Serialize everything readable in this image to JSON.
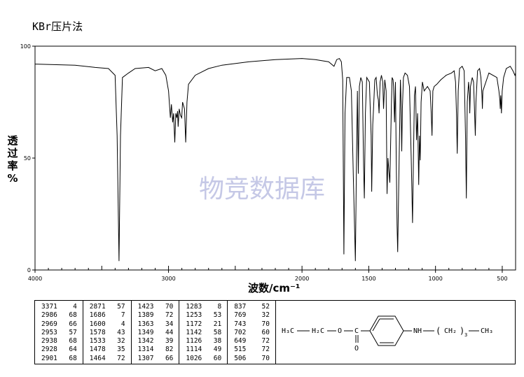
{
  "header": {
    "method": "KBr压片法"
  },
  "watermark": "物竞数据库",
  "chart_data": {
    "type": "line",
    "xlabel": "波数/cm⁻¹",
    "ylabel": [
      "透",
      "过",
      "率",
      "%"
    ],
    "xlim": [
      4000,
      400
    ],
    "ylim": [
      0,
      100
    ],
    "x_ticks": [
      4000,
      3000,
      2000,
      1500,
      1000,
      500
    ],
    "y_ticks": [
      0,
      50,
      100
    ],
    "series": [
      {
        "values": [
          [
            4000,
            92
          ],
          [
            3700,
            91.5
          ],
          [
            3550,
            90.5
          ],
          [
            3450,
            90
          ],
          [
            3400,
            87
          ],
          [
            3385,
            60
          ],
          [
            3371,
            4
          ],
          [
            3360,
            60
          ],
          [
            3345,
            86
          ],
          [
            3300,
            88
          ],
          [
            3250,
            90
          ],
          [
            3150,
            90.5
          ],
          [
            3100,
            89
          ],
          [
            3050,
            90
          ],
          [
            3020,
            87
          ],
          [
            3000,
            80
          ],
          [
            2986,
            68
          ],
          [
            2978,
            74
          ],
          [
            2969,
            66
          ],
          [
            2962,
            70
          ],
          [
            2953,
            57
          ],
          [
            2945,
            70
          ],
          [
            2938,
            68
          ],
          [
            2932,
            71
          ],
          [
            2928,
            64
          ],
          [
            2920,
            72
          ],
          [
            2910,
            69
          ],
          [
            2901,
            68
          ],
          [
            2895,
            75
          ],
          [
            2880,
            72
          ],
          [
            2871,
            57
          ],
          [
            2862,
            75
          ],
          [
            2850,
            83
          ],
          [
            2800,
            87
          ],
          [
            2700,
            90
          ],
          [
            2600,
            91.5
          ],
          [
            2400,
            93
          ],
          [
            2200,
            94
          ],
          [
            2000,
            94.5
          ],
          [
            1900,
            94
          ],
          [
            1800,
            93
          ],
          [
            1760,
            91
          ],
          [
            1740,
            94
          ],
          [
            1720,
            94.5
          ],
          [
            1705,
            93
          ],
          [
            1695,
            85
          ],
          [
            1686,
            7
          ],
          [
            1678,
            70
          ],
          [
            1665,
            86
          ],
          [
            1645,
            86
          ],
          [
            1630,
            80
          ],
          [
            1615,
            40
          ],
          [
            1600,
            4
          ],
          [
            1592,
            50
          ],
          [
            1585,
            80
          ],
          [
            1578,
            43
          ],
          [
            1570,
            82
          ],
          [
            1560,
            86
          ],
          [
            1548,
            84
          ],
          [
            1538,
            45
          ],
          [
            1533,
            32
          ],
          [
            1525,
            70
          ],
          [
            1515,
            86
          ],
          [
            1495,
            84
          ],
          [
            1482,
            60
          ],
          [
            1478,
            35
          ],
          [
            1470,
            65
          ],
          [
            1464,
            72
          ],
          [
            1455,
            85
          ],
          [
            1445,
            86
          ],
          [
            1435,
            78
          ],
          [
            1428,
            76
          ],
          [
            1423,
            70
          ],
          [
            1415,
            84
          ],
          [
            1405,
            87
          ],
          [
            1395,
            84
          ],
          [
            1389,
            72
          ],
          [
            1380,
            85
          ],
          [
            1370,
            80
          ],
          [
            1363,
            34
          ],
          [
            1356,
            50
          ],
          [
            1349,
            44
          ],
          [
            1342,
            39
          ],
          [
            1330,
            75
          ],
          [
            1325,
            86
          ],
          [
            1318,
            85
          ],
          [
            1314,
            82
          ],
          [
            1307,
            66
          ],
          [
            1300,
            84
          ],
          [
            1294,
            50
          ],
          [
            1288,
            20
          ],
          [
            1283,
            8
          ],
          [
            1275,
            40
          ],
          [
            1263,
            85
          ],
          [
            1258,
            75
          ],
          [
            1253,
            53
          ],
          [
            1248,
            72
          ],
          [
            1240,
            86
          ],
          [
            1228,
            88
          ],
          [
            1210,
            87
          ],
          [
            1195,
            82
          ],
          [
            1182,
            50
          ],
          [
            1172,
            21
          ],
          [
            1165,
            50
          ],
          [
            1158,
            78
          ],
          [
            1150,
            82
          ],
          [
            1142,
            58
          ],
          [
            1134,
            70
          ],
          [
            1126,
            38
          ],
          [
            1120,
            60
          ],
          [
            1114,
            49
          ],
          [
            1108,
            75
          ],
          [
            1098,
            84
          ],
          [
            1085,
            80
          ],
          [
            1060,
            82
          ],
          [
            1040,
            80
          ],
          [
            1032,
            70
          ],
          [
            1026,
            60
          ],
          [
            1020,
            80
          ],
          [
            1010,
            82
          ],
          [
            990,
            83
          ],
          [
            960,
            85
          ],
          [
            920,
            87
          ],
          [
            880,
            88
          ],
          [
            860,
            89
          ],
          [
            850,
            84
          ],
          [
            843,
            70
          ],
          [
            837,
            52
          ],
          [
            830,
            80
          ],
          [
            820,
            90
          ],
          [
            800,
            91
          ],
          [
            785,
            89
          ],
          [
            775,
            60
          ],
          [
            769,
            32
          ],
          [
            762,
            75
          ],
          [
            752,
            84
          ],
          [
            746,
            78
          ],
          [
            743,
            70
          ],
          [
            738,
            82
          ],
          [
            725,
            86
          ],
          [
            715,
            84
          ],
          [
            707,
            70
          ],
          [
            702,
            60
          ],
          [
            697,
            75
          ],
          [
            685,
            89
          ],
          [
            670,
            90
          ],
          [
            660,
            86
          ],
          [
            652,
            78
          ],
          [
            649,
            72
          ],
          [
            645,
            80
          ],
          [
            600,
            88
          ],
          [
            540,
            86
          ],
          [
            525,
            80
          ],
          [
            518,
            76
          ],
          [
            515,
            72
          ],
          [
            511,
            78
          ],
          [
            508,
            74
          ],
          [
            506,
            70
          ],
          [
            500,
            80
          ],
          [
            490,
            86
          ],
          [
            470,
            90
          ],
          [
            440,
            91
          ],
          [
            420,
            89
          ],
          [
            405,
            87
          ],
          [
            400,
            88
          ]
        ]
      }
    ]
  },
  "peak_table": [
    [
      [
        "3371",
        "4"
      ],
      [
        "2986",
        "68"
      ],
      [
        "2969",
        "66"
      ],
      [
        "2953",
        "57"
      ],
      [
        "2938",
        "68"
      ],
      [
        "2928",
        "64"
      ],
      [
        "2901",
        "68"
      ]
    ],
    [
      [
        "2871",
        "57"
      ],
      [
        "1686",
        "7"
      ],
      [
        "1600",
        "4"
      ],
      [
        "1578",
        "43"
      ],
      [
        "1533",
        "32"
      ],
      [
        "1478",
        "35"
      ],
      [
        "1464",
        "72"
      ]
    ],
    [
      [
        "1423",
        "70"
      ],
      [
        "1389",
        "72"
      ],
      [
        "1363",
        "34"
      ],
      [
        "1349",
        "44"
      ],
      [
        "1342",
        "39"
      ],
      [
        "1314",
        "82"
      ],
      [
        "1307",
        "66"
      ]
    ],
    [
      [
        "1283",
        "8"
      ],
      [
        "1253",
        "53"
      ],
      [
        "1172",
        "21"
      ],
      [
        "1142",
        "58"
      ],
      [
        "1126",
        "38"
      ],
      [
        "1114",
        "49"
      ],
      [
        "1026",
        "60"
      ]
    ],
    [
      [
        "837",
        "52"
      ],
      [
        "769",
        "32"
      ],
      [
        "743",
        "70"
      ],
      [
        "702",
        "60"
      ],
      [
        "649",
        "72"
      ],
      [
        "515",
        "72"
      ],
      [
        "506",
        "70"
      ]
    ]
  ],
  "structure": {
    "h3c": "H₃C",
    "h2c": "H₂C",
    "o_ester": "O",
    "c_carbonyl": "C",
    "o_carbonyl": "O",
    "nh": "NH",
    "lparen": "(",
    "ch2": "CH₂",
    "sub": "3",
    "rparen": ")",
    "ch3": "CH₃"
  }
}
